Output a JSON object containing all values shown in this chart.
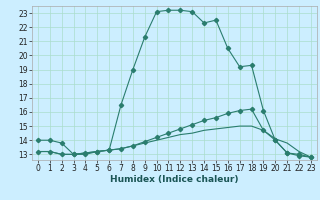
{
  "xlabel": "Humidex (Indice chaleur)",
  "bg_color": "#cceeff",
  "grid_color": "#aaddcc",
  "line_color": "#2a7d6e",
  "x_ticks": [
    0,
    1,
    2,
    3,
    4,
    5,
    6,
    7,
    8,
    9,
    10,
    11,
    12,
    13,
    14,
    15,
    16,
    17,
    18,
    19,
    20,
    21,
    22,
    23
  ],
  "y_ticks": [
    13,
    14,
    15,
    16,
    17,
    18,
    19,
    20,
    21,
    22,
    23
  ],
  "ylim": [
    12.6,
    23.5
  ],
  "xlim": [
    -0.5,
    23.5
  ],
  "line1_x": [
    0,
    1,
    2,
    3,
    4,
    5,
    6,
    7,
    8,
    9,
    10,
    11,
    12,
    13,
    14,
    15,
    16,
    17,
    18,
    19,
    20,
    21,
    22,
    23
  ],
  "line1_y": [
    14.0,
    14.0,
    13.8,
    13.0,
    13.0,
    13.2,
    13.3,
    16.5,
    19.0,
    21.3,
    23.1,
    23.2,
    23.2,
    23.1,
    22.3,
    22.5,
    20.5,
    19.2,
    19.3,
    16.1,
    14.0,
    13.1,
    13.0,
    12.8
  ],
  "line2_x": [
    0,
    1,
    2,
    3,
    4,
    5,
    6,
    7,
    8,
    9,
    10,
    11,
    12,
    13,
    14,
    15,
    16,
    17,
    18,
    19,
    20,
    21,
    22,
    23
  ],
  "line2_y": [
    13.2,
    13.2,
    13.0,
    13.0,
    13.1,
    13.2,
    13.3,
    13.4,
    13.6,
    13.9,
    14.2,
    14.5,
    14.8,
    15.1,
    15.4,
    15.6,
    15.9,
    16.1,
    16.2,
    14.7,
    14.0,
    13.1,
    12.9,
    12.8
  ],
  "line3_x": [
    0,
    1,
    2,
    3,
    4,
    5,
    6,
    7,
    8,
    9,
    10,
    11,
    12,
    13,
    14,
    15,
    16,
    17,
    18,
    19,
    20,
    21,
    22,
    23
  ],
  "line3_y": [
    13.2,
    13.2,
    13.0,
    13.0,
    13.1,
    13.2,
    13.3,
    13.4,
    13.6,
    13.8,
    14.0,
    14.2,
    14.4,
    14.5,
    14.7,
    14.8,
    14.9,
    15.0,
    15.0,
    14.7,
    14.1,
    13.8,
    13.2,
    12.8
  ],
  "tick_fontsize": 5.5,
  "xlabel_fontsize": 6.5
}
